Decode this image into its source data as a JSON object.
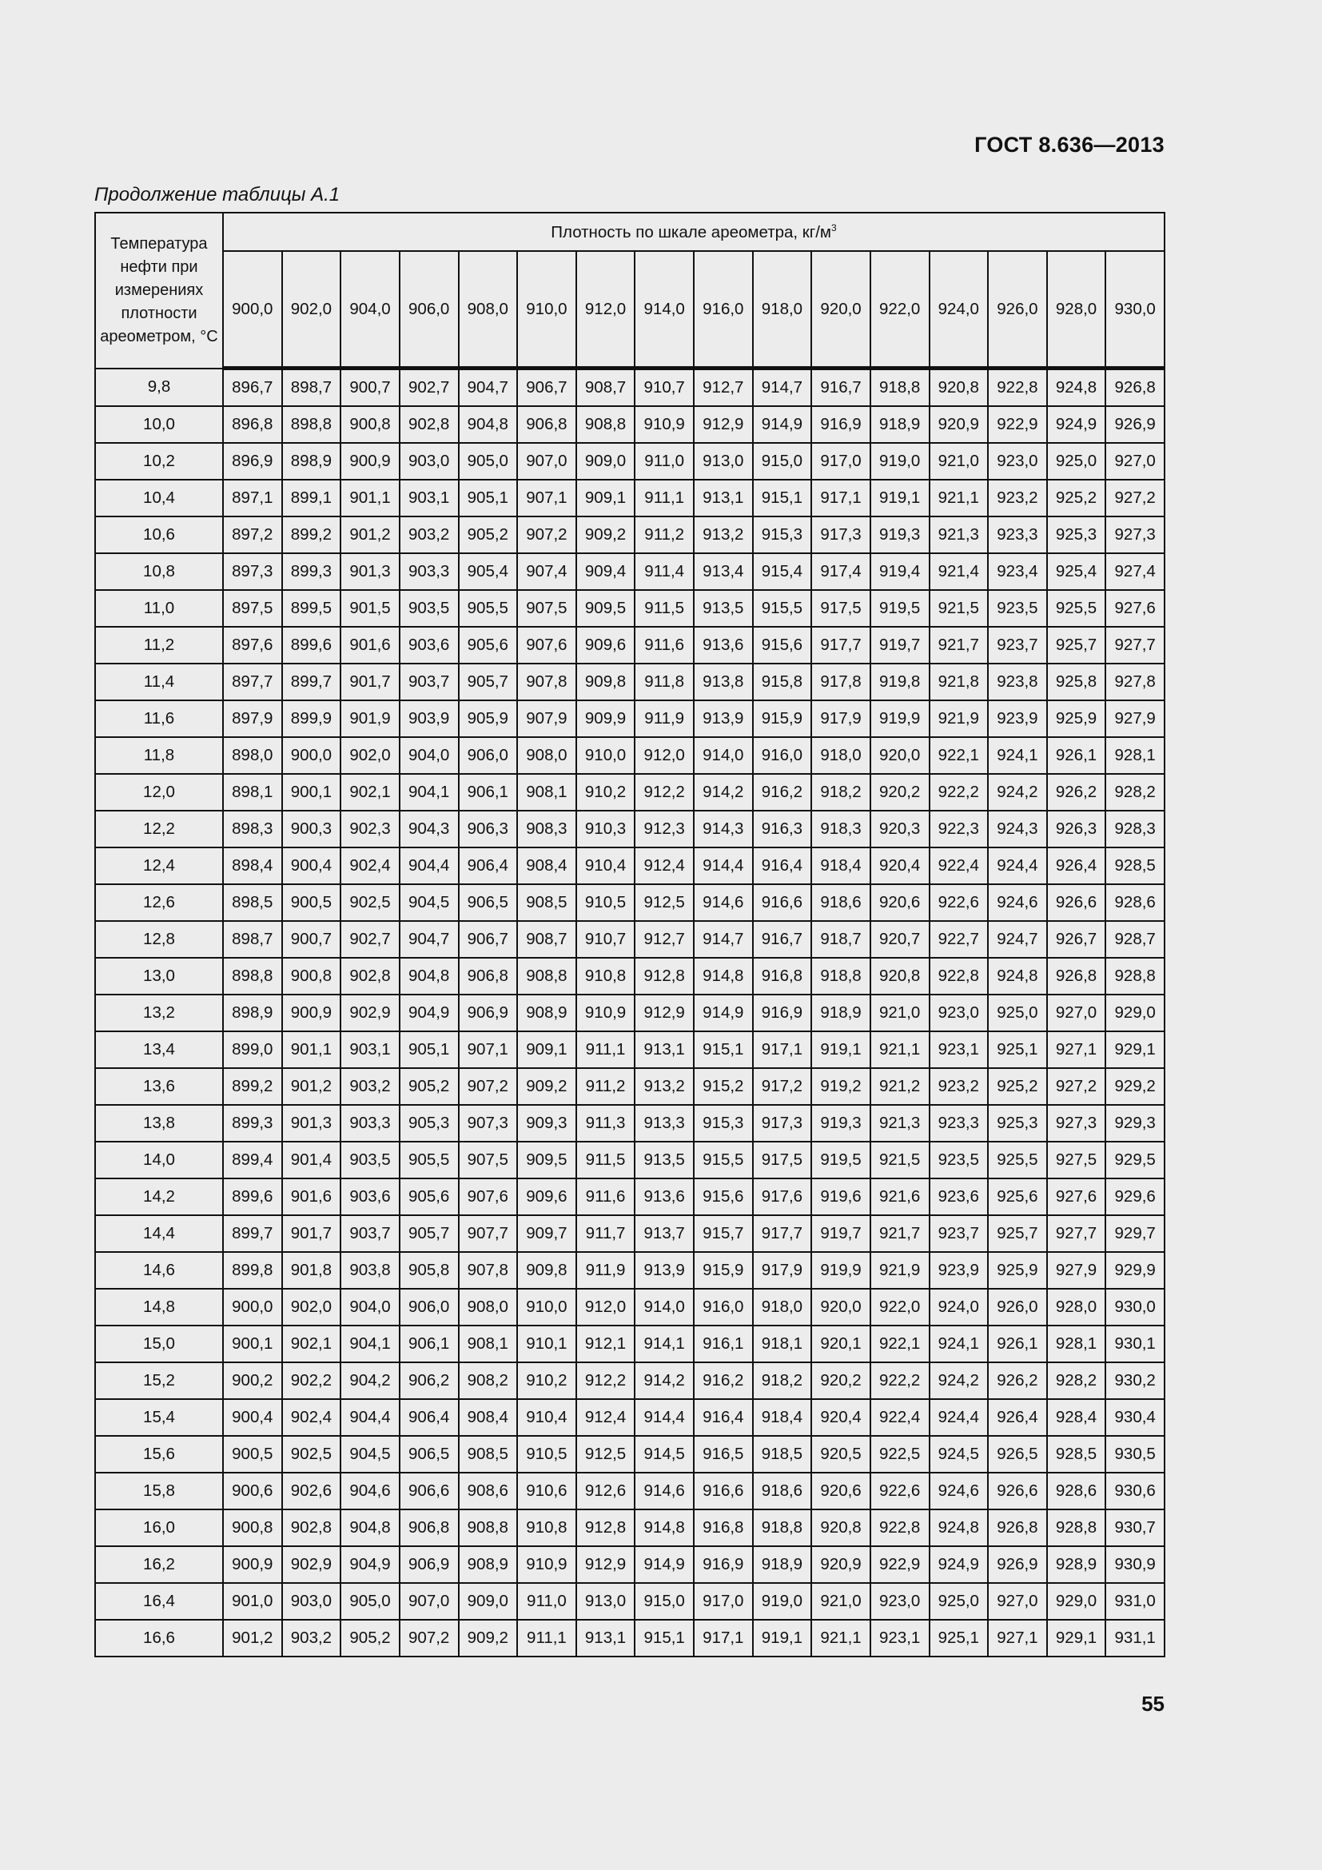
{
  "header": {
    "doc_code": "ГОСТ 8.636—2013"
  },
  "caption": "Продолжение таблицы А.1",
  "table": {
    "temp_header": "Температура нефти при измерениях плотности ареометром, °С",
    "group_header": "Плотность по шкале ареометра, кг/м",
    "group_header_sup": "3",
    "columns": [
      "900,0",
      "902,0",
      "904,0",
      "906,0",
      "908,0",
      "910,0",
      "912,0",
      "914,0",
      "916,0",
      "918,0",
      "920,0",
      "922,0",
      "924,0",
      "926,0",
      "928,0",
      "930,0"
    ],
    "rows": [
      {
        "t": "9,8",
        "v": [
          "896,7",
          "898,7",
          "900,7",
          "902,7",
          "904,7",
          "906,7",
          "908,7",
          "910,7",
          "912,7",
          "914,7",
          "916,7",
          "918,8",
          "920,8",
          "922,8",
          "924,8",
          "926,8"
        ]
      },
      {
        "t": "10,0",
        "v": [
          "896,8",
          "898,8",
          "900,8",
          "902,8",
          "904,8",
          "906,8",
          "908,8",
          "910,9",
          "912,9",
          "914,9",
          "916,9",
          "918,9",
          "920,9",
          "922,9",
          "924,9",
          "926,9"
        ]
      },
      {
        "t": "10,2",
        "v": [
          "896,9",
          "898,9",
          "900,9",
          "903,0",
          "905,0",
          "907,0",
          "909,0",
          "911,0",
          "913,0",
          "915,0",
          "917,0",
          "919,0",
          "921,0",
          "923,0",
          "925,0",
          "927,0"
        ]
      },
      {
        "t": "10,4",
        "v": [
          "897,1",
          "899,1",
          "901,1",
          "903,1",
          "905,1",
          "907,1",
          "909,1",
          "911,1",
          "913,1",
          "915,1",
          "917,1",
          "919,1",
          "921,1",
          "923,2",
          "925,2",
          "927,2"
        ]
      },
      {
        "t": "10,6",
        "v": [
          "897,2",
          "899,2",
          "901,2",
          "903,2",
          "905,2",
          "907,2",
          "909,2",
          "911,2",
          "913,2",
          "915,3",
          "917,3",
          "919,3",
          "921,3",
          "923,3",
          "925,3",
          "927,3"
        ]
      },
      {
        "t": "10,8",
        "v": [
          "897,3",
          "899,3",
          "901,3",
          "903,3",
          "905,4",
          "907,4",
          "909,4",
          "911,4",
          "913,4",
          "915,4",
          "917,4",
          "919,4",
          "921,4",
          "923,4",
          "925,4",
          "927,4"
        ]
      },
      {
        "t": "11,0",
        "v": [
          "897,5",
          "899,5",
          "901,5",
          "903,5",
          "905,5",
          "907,5",
          "909,5",
          "911,5",
          "913,5",
          "915,5",
          "917,5",
          "919,5",
          "921,5",
          "923,5",
          "925,5",
          "927,6"
        ]
      },
      {
        "t": "11,2",
        "v": [
          "897,6",
          "899,6",
          "901,6",
          "903,6",
          "905,6",
          "907,6",
          "909,6",
          "911,6",
          "913,6",
          "915,6",
          "917,7",
          "919,7",
          "921,7",
          "923,7",
          "925,7",
          "927,7"
        ]
      },
      {
        "t": "11,4",
        "v": [
          "897,7",
          "899,7",
          "901,7",
          "903,7",
          "905,7",
          "907,8",
          "909,8",
          "911,8",
          "913,8",
          "915,8",
          "917,8",
          "919,8",
          "921,8",
          "923,8",
          "925,8",
          "927,8"
        ]
      },
      {
        "t": "11,6",
        "v": [
          "897,9",
          "899,9",
          "901,9",
          "903,9",
          "905,9",
          "907,9",
          "909,9",
          "911,9",
          "913,9",
          "915,9",
          "917,9",
          "919,9",
          "921,9",
          "923,9",
          "925,9",
          "927,9"
        ]
      },
      {
        "t": "11,8",
        "v": [
          "898,0",
          "900,0",
          "902,0",
          "904,0",
          "906,0",
          "908,0",
          "910,0",
          "912,0",
          "914,0",
          "916,0",
          "918,0",
          "920,0",
          "922,1",
          "924,1",
          "926,1",
          "928,1"
        ]
      },
      {
        "t": "12,0",
        "v": [
          "898,1",
          "900,1",
          "902,1",
          "904,1",
          "906,1",
          "908,1",
          "910,2",
          "912,2",
          "914,2",
          "916,2",
          "918,2",
          "920,2",
          "922,2",
          "924,2",
          "926,2",
          "928,2"
        ]
      },
      {
        "t": "12,2",
        "v": [
          "898,3",
          "900,3",
          "902,3",
          "904,3",
          "906,3",
          "908,3",
          "910,3",
          "912,3",
          "914,3",
          "916,3",
          "918,3",
          "920,3",
          "922,3",
          "924,3",
          "926,3",
          "928,3"
        ]
      },
      {
        "t": "12,4",
        "v": [
          "898,4",
          "900,4",
          "902,4",
          "904,4",
          "906,4",
          "908,4",
          "910,4",
          "912,4",
          "914,4",
          "916,4",
          "918,4",
          "920,4",
          "922,4",
          "924,4",
          "926,4",
          "928,5"
        ]
      },
      {
        "t": "12,6",
        "v": [
          "898,5",
          "900,5",
          "902,5",
          "904,5",
          "906,5",
          "908,5",
          "910,5",
          "912,5",
          "914,6",
          "916,6",
          "918,6",
          "920,6",
          "922,6",
          "924,6",
          "926,6",
          "928,6"
        ]
      },
      {
        "t": "12,8",
        "v": [
          "898,7",
          "900,7",
          "902,7",
          "904,7",
          "906,7",
          "908,7",
          "910,7",
          "912,7",
          "914,7",
          "916,7",
          "918,7",
          "920,7",
          "922,7",
          "924,7",
          "926,7",
          "928,7"
        ]
      },
      {
        "t": "13,0",
        "v": [
          "898,8",
          "900,8",
          "902,8",
          "904,8",
          "906,8",
          "908,8",
          "910,8",
          "912,8",
          "914,8",
          "916,8",
          "918,8",
          "920,8",
          "922,8",
          "924,8",
          "926,8",
          "928,8"
        ]
      },
      {
        "t": "13,2",
        "v": [
          "898,9",
          "900,9",
          "902,9",
          "904,9",
          "906,9",
          "908,9",
          "910,9",
          "912,9",
          "914,9",
          "916,9",
          "918,9",
          "921,0",
          "923,0",
          "925,0",
          "927,0",
          "929,0"
        ]
      },
      {
        "t": "13,4",
        "v": [
          "899,0",
          "901,1",
          "903,1",
          "905,1",
          "907,1",
          "909,1",
          "911,1",
          "913,1",
          "915,1",
          "917,1",
          "919,1",
          "921,1",
          "923,1",
          "925,1",
          "927,1",
          "929,1"
        ]
      },
      {
        "t": "13,6",
        "v": [
          "899,2",
          "901,2",
          "903,2",
          "905,2",
          "907,2",
          "909,2",
          "911,2",
          "913,2",
          "915,2",
          "917,2",
          "919,2",
          "921,2",
          "923,2",
          "925,2",
          "927,2",
          "929,2"
        ]
      },
      {
        "t": "13,8",
        "v": [
          "899,3",
          "901,3",
          "903,3",
          "905,3",
          "907,3",
          "909,3",
          "911,3",
          "913,3",
          "915,3",
          "917,3",
          "919,3",
          "921,3",
          "923,3",
          "925,3",
          "927,3",
          "929,3"
        ]
      },
      {
        "t": "14,0",
        "v": [
          "899,4",
          "901,4",
          "903,5",
          "905,5",
          "907,5",
          "909,5",
          "911,5",
          "913,5",
          "915,5",
          "917,5",
          "919,5",
          "921,5",
          "923,5",
          "925,5",
          "927,5",
          "929,5"
        ]
      },
      {
        "t": "14,2",
        "v": [
          "899,6",
          "901,6",
          "903,6",
          "905,6",
          "907,6",
          "909,6",
          "911,6",
          "913,6",
          "915,6",
          "917,6",
          "919,6",
          "921,6",
          "923,6",
          "925,6",
          "927,6",
          "929,6"
        ]
      },
      {
        "t": "14,4",
        "v": [
          "899,7",
          "901,7",
          "903,7",
          "905,7",
          "907,7",
          "909,7",
          "911,7",
          "913,7",
          "915,7",
          "917,7",
          "919,7",
          "921,7",
          "923,7",
          "925,7",
          "927,7",
          "929,7"
        ]
      },
      {
        "t": "14,6",
        "v": [
          "899,8",
          "901,8",
          "903,8",
          "905,8",
          "907,8",
          "909,8",
          "911,9",
          "913,9",
          "915,9",
          "917,9",
          "919,9",
          "921,9",
          "923,9",
          "925,9",
          "927,9",
          "929,9"
        ]
      },
      {
        "t": "14,8",
        "v": [
          "900,0",
          "902,0",
          "904,0",
          "906,0",
          "908,0",
          "910,0",
          "912,0",
          "914,0",
          "916,0",
          "918,0",
          "920,0",
          "922,0",
          "924,0",
          "926,0",
          "928,0",
          "930,0"
        ]
      },
      {
        "t": "15,0",
        "v": [
          "900,1",
          "902,1",
          "904,1",
          "906,1",
          "908,1",
          "910,1",
          "912,1",
          "914,1",
          "916,1",
          "918,1",
          "920,1",
          "922,1",
          "924,1",
          "926,1",
          "928,1",
          "930,1"
        ]
      },
      {
        "t": "15,2",
        "v": [
          "900,2",
          "902,2",
          "904,2",
          "906,2",
          "908,2",
          "910,2",
          "912,2",
          "914,2",
          "916,2",
          "918,2",
          "920,2",
          "922,2",
          "924,2",
          "926,2",
          "928,2",
          "930,2"
        ]
      },
      {
        "t": "15,4",
        "v": [
          "900,4",
          "902,4",
          "904,4",
          "906,4",
          "908,4",
          "910,4",
          "912,4",
          "914,4",
          "916,4",
          "918,4",
          "920,4",
          "922,4",
          "924,4",
          "926,4",
          "928,4",
          "930,4"
        ]
      },
      {
        "t": "15,6",
        "v": [
          "900,5",
          "902,5",
          "904,5",
          "906,5",
          "908,5",
          "910,5",
          "912,5",
          "914,5",
          "916,5",
          "918,5",
          "920,5",
          "922,5",
          "924,5",
          "926,5",
          "928,5",
          "930,5"
        ]
      },
      {
        "t": "15,8",
        "v": [
          "900,6",
          "902,6",
          "904,6",
          "906,6",
          "908,6",
          "910,6",
          "912,6",
          "914,6",
          "916,6",
          "918,6",
          "920,6",
          "922,6",
          "924,6",
          "926,6",
          "928,6",
          "930,6"
        ]
      },
      {
        "t": "16,0",
        "v": [
          "900,8",
          "902,8",
          "904,8",
          "906,8",
          "908,8",
          "910,8",
          "912,8",
          "914,8",
          "916,8",
          "918,8",
          "920,8",
          "922,8",
          "924,8",
          "926,8",
          "928,8",
          "930,7"
        ]
      },
      {
        "t": "16,2",
        "v": [
          "900,9",
          "902,9",
          "904,9",
          "906,9",
          "908,9",
          "910,9",
          "912,9",
          "914,9",
          "916,9",
          "918,9",
          "920,9",
          "922,9",
          "924,9",
          "926,9",
          "928,9",
          "930,9"
        ]
      },
      {
        "t": "16,4",
        "v": [
          "901,0",
          "903,0",
          "905,0",
          "907,0",
          "909,0",
          "911,0",
          "913,0",
          "915,0",
          "917,0",
          "919,0",
          "921,0",
          "923,0",
          "925,0",
          "927,0",
          "929,0",
          "931,0"
        ]
      },
      {
        "t": "16,6",
        "v": [
          "901,2",
          "903,2",
          "905,2",
          "907,2",
          "909,2",
          "911,1",
          "913,1",
          "915,1",
          "917,1",
          "919,1",
          "921,1",
          "923,1",
          "925,1",
          "927,1",
          "929,1",
          "931,1"
        ]
      }
    ]
  },
  "footer": {
    "page_number": "55"
  }
}
